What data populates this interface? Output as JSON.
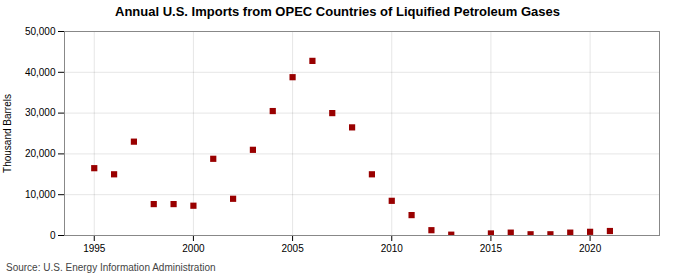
{
  "chart_data": {
    "type": "scatter",
    "title": "Annual U.S. Imports from OPEC Countries of Liquified Petroleum Gases",
    "ylabel": "Thousand Barrels",
    "source": "Source: U.S. Energy Information Administration",
    "color": "#990000",
    "marker": "square",
    "grid": true,
    "xlim": [
      1993.5,
      2023.5
    ],
    "ylim": [
      0,
      50000
    ],
    "xticks": [
      1995,
      2000,
      2005,
      2010,
      2015,
      2020
    ],
    "yticks": [
      0,
      {
        "value": 10000,
        "label": "10,000"
      },
      {
        "value": 20000,
        "label": "20,000"
      },
      {
        "value": 30000,
        "label": "30,000"
      },
      {
        "value": 40000,
        "label": "40,000"
      },
      {
        "value": 50000,
        "label": "50,000"
      }
    ],
    "x": [
      1995,
      1996,
      1997,
      1998,
      1999,
      2000,
      2001,
      2002,
      2003,
      2004,
      2005,
      2006,
      2007,
      2008,
      2009,
      2010,
      2011,
      2012,
      2013,
      2015,
      2016,
      2017,
      2018,
      2019,
      2020,
      2021
    ],
    "values": [
      16500,
      15000,
      23000,
      7700,
      7700,
      7300,
      18800,
      9000,
      21000,
      30500,
      38800,
      42800,
      30000,
      26500,
      15000,
      8500,
      5000,
      1300,
      200,
      500,
      700,
      300,
      300,
      700,
      900,
      1100
    ]
  }
}
